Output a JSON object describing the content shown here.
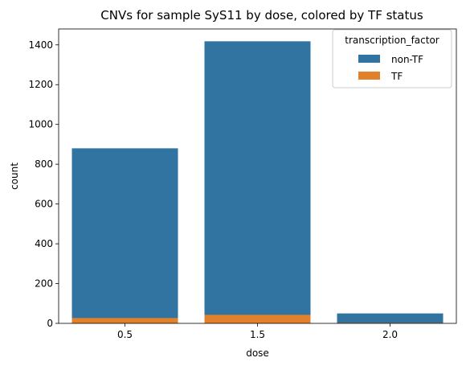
{
  "chart_data": {
    "type": "bar",
    "title": "CNVs for sample SyS11 by dose, colored by TF status",
    "xlabel": "dose",
    "ylabel": "count",
    "categories": [
      "0.5",
      "1.5",
      "2.0"
    ],
    "ylim": [
      0,
      1480
    ],
    "yticks": [
      0,
      200,
      400,
      600,
      800,
      1000,
      1200,
      1400
    ],
    "grid": false,
    "legend": {
      "title": "transcription_factor",
      "placement": "top-right"
    },
    "series": [
      {
        "name": "non-TF",
        "color": "#3274a1",
        "values": [
          880,
          1418,
          50
        ]
      },
      {
        "name": "TF",
        "color": "#e1812c",
        "values": [
          27,
          43,
          3
        ]
      }
    ],
    "overlay": true
  }
}
